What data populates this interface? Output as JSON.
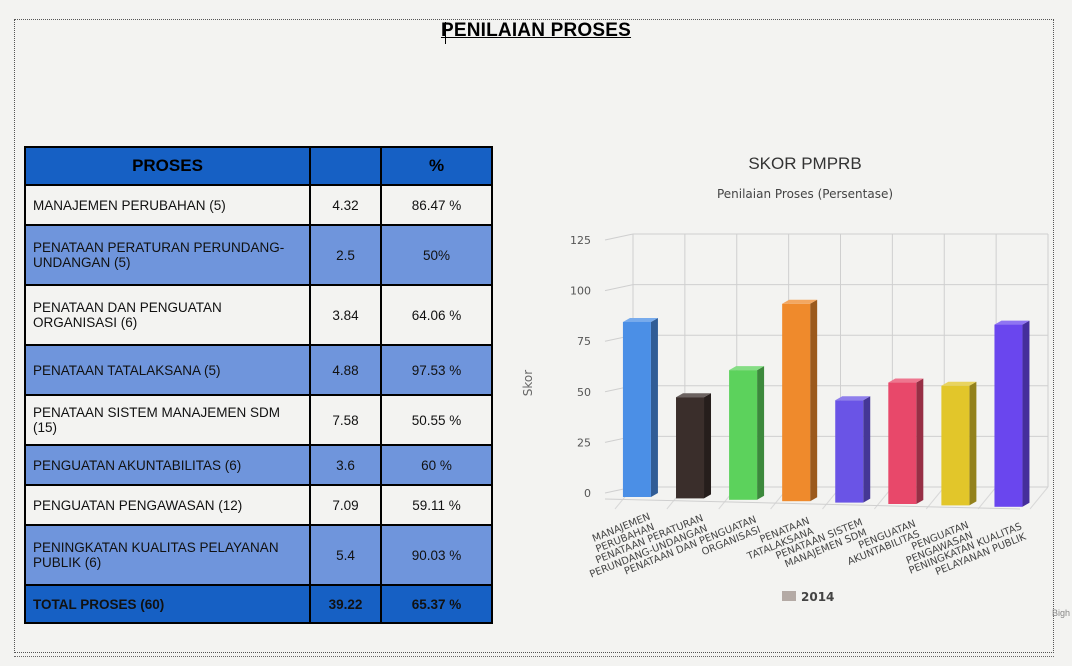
{
  "page": {
    "title": "PENILAIAN PROSES",
    "watermark": "Bigh"
  },
  "table": {
    "headers": [
      "PROSES",
      "",
      "%"
    ],
    "rows": [
      {
        "name": "MANAJEMEN PERUBAHAN (5)",
        "score": "4.32",
        "percent": "86.47 %"
      },
      {
        "name": "PENATAAN PERATURAN PERUNDANG-UNDANGAN (5)",
        "score": "2.5",
        "percent": "50%"
      },
      {
        "name": "PENATAAN DAN PENGUATAN ORGANISASI (6)",
        "score": "3.84",
        "percent": "64.06 %"
      },
      {
        "name": "PENATAAN TATALAKSANA (5)",
        "score": "4.88",
        "percent": "97.53 %"
      },
      {
        "name": "PENATAAN SISTEM MANAJEMEN SDM (15)",
        "score": "7.58",
        "percent": "50.55 %"
      },
      {
        "name": "PENGUATAN AKUNTABILITAS (6)",
        "score": "3.6",
        "percent": "60 %"
      },
      {
        "name": "PENGUATAN PENGAWASAN (12)",
        "score": "7.09",
        "percent": "59.11 %"
      },
      {
        "name": "PENINGKATAN KUALITAS PELAYANAN PUBLIK (6)",
        "score": "5.4",
        "percent": "90.03 %"
      }
    ],
    "total": {
      "name": "TOTAL PROSES (60)",
      "score": "39.22",
      "percent": "65.37 %"
    }
  },
  "chart_data": {
    "type": "bar",
    "title": "SKOR PMPRB",
    "subtitle": "Penilaian Proses (Persentase)",
    "xlabel": "",
    "ylabel": "Skor",
    "ylim": [
      0,
      125
    ],
    "yticks": [
      0,
      25,
      50,
      75,
      100,
      125
    ],
    "grid": true,
    "legend": "bottom",
    "categories": [
      [
        "MANAJEMEN",
        "PERUBAHAN"
      ],
      [
        "PENATAAN PERATURAN",
        "PERUNDANG-UNDANGAN"
      ],
      [
        "PENATAAN DAN PENGUATAN",
        "ORGANISASI"
      ],
      [
        "PENATAAN",
        "TATALAKSANA"
      ],
      [
        "PENATAAN SISTEM",
        "MANAJEMEN SDM"
      ],
      [
        "PENGUATAN",
        "AKUNTABILITAS"
      ],
      [
        "PENGUATAN",
        "PENGAWASAN"
      ],
      [
        "PENINGKATAN KUALITAS",
        "PELAYANAN PUBLIK"
      ]
    ],
    "series": [
      {
        "name": "2014",
        "values": [
          86.47,
          50,
          64.06,
          97.53,
          50.55,
          60,
          59.11,
          90.03
        ]
      }
    ],
    "bar_colors": [
      "#4b8fe6",
      "#3a2e2b",
      "#5cd25c",
      "#ef8a2c",
      "#6a54e6",
      "#e8486a",
      "#e2c62a",
      "#6a46ee"
    ],
    "legend_color": "#b4aaa5"
  }
}
